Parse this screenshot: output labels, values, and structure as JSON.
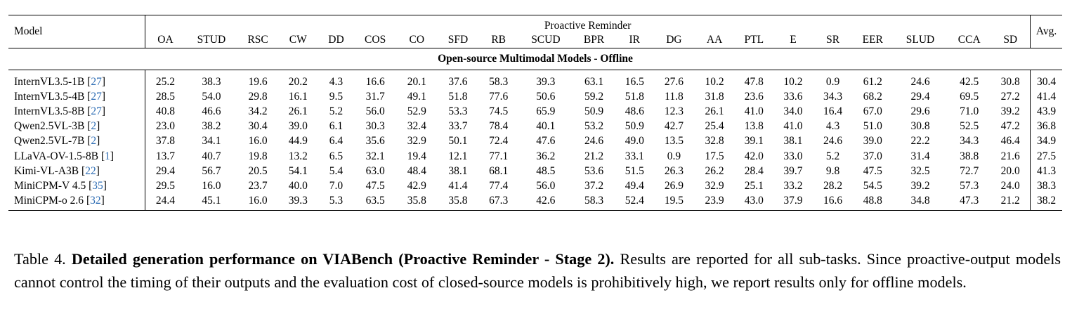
{
  "table": {
    "model_header": "Model",
    "group_header": "Proactive Reminder",
    "avg_header": "Avg.",
    "columns": [
      "OA",
      "STUD",
      "RSC",
      "CW",
      "DD",
      "COS",
      "CO",
      "SFD",
      "RB",
      "SCUD",
      "BPR",
      "IR",
      "DG",
      "AA",
      "PTL",
      "E",
      "SR",
      "EER",
      "SLUD",
      "CCA",
      "SD"
    ],
    "section_title": "Open-source Multimodal Models - Offline",
    "rows": [
      {
        "name": "InternVL3.5-1B",
        "ref": "27",
        "values": [
          "25.2",
          "38.3",
          "19.6",
          "20.2",
          "4.3",
          "16.6",
          "20.1",
          "37.6",
          "58.3",
          "39.3",
          "63.1",
          "16.5",
          "27.6",
          "10.2",
          "47.8",
          "10.2",
          "0.9",
          "61.2",
          "24.6",
          "42.5",
          "30.8"
        ],
        "avg": "30.4"
      },
      {
        "name": "InternVL3.5-4B",
        "ref": "27",
        "values": [
          "28.5",
          "54.0",
          "29.8",
          "16.1",
          "9.5",
          "31.7",
          "49.1",
          "51.8",
          "77.6",
          "50.6",
          "59.2",
          "51.8",
          "11.8",
          "31.8",
          "23.6",
          "33.6",
          "34.3",
          "68.2",
          "29.4",
          "69.5",
          "27.2"
        ],
        "avg": "41.4"
      },
      {
        "name": "InternVL3.5-8B",
        "ref": "27",
        "values": [
          "40.8",
          "46.6",
          "34.2",
          "26.1",
          "5.2",
          "56.0",
          "52.9",
          "53.3",
          "74.5",
          "65.9",
          "50.9",
          "48.6",
          "12.3",
          "26.1",
          "41.0",
          "34.0",
          "16.4",
          "67.0",
          "29.6",
          "71.0",
          "39.2"
        ],
        "avg": "43.9"
      },
      {
        "name": "Qwen2.5VL-3B",
        "ref": "2",
        "values": [
          "23.0",
          "38.2",
          "30.4",
          "39.0",
          "6.1",
          "30.3",
          "32.4",
          "33.7",
          "78.4",
          "40.1",
          "53.2",
          "50.9",
          "42.7",
          "25.4",
          "13.8",
          "41.0",
          "4.3",
          "51.0",
          "30.8",
          "52.5",
          "47.2"
        ],
        "avg": "36.8"
      },
      {
        "name": "Qwen2.5VL-7B",
        "ref": "2",
        "values": [
          "37.8",
          "34.1",
          "16.0",
          "44.9",
          "6.4",
          "35.6",
          "32.9",
          "50.1",
          "72.4",
          "47.6",
          "24.6",
          "49.0",
          "13.5",
          "32.8",
          "39.1",
          "38.1",
          "24.6",
          "39.0",
          "22.2",
          "34.3",
          "46.4"
        ],
        "avg": "34.9"
      },
      {
        "name": "LLaVA-OV-1.5-8B",
        "ref": "1",
        "values": [
          "13.7",
          "40.7",
          "19.8",
          "13.2",
          "6.5",
          "32.1",
          "19.4",
          "12.1",
          "77.1",
          "36.2",
          "21.2",
          "33.1",
          "0.9",
          "17.5",
          "42.0",
          "33.0",
          "5.2",
          "37.0",
          "31.4",
          "38.8",
          "21.6"
        ],
        "avg": "27.5"
      },
      {
        "name": "Kimi-VL-A3B",
        "ref": "22",
        "values": [
          "29.4",
          "56.7",
          "20.5",
          "54.1",
          "5.4",
          "63.0",
          "48.4",
          "38.1",
          "68.1",
          "48.5",
          "53.6",
          "51.5",
          "26.3",
          "26.2",
          "28.4",
          "39.7",
          "9.8",
          "47.5",
          "32.5",
          "72.7",
          "20.0"
        ],
        "avg": "41.3"
      },
      {
        "name": "MiniCPM-V 4.5",
        "ref": "35",
        "values": [
          "29.5",
          "16.0",
          "23.7",
          "40.0",
          "7.0",
          "47.5",
          "42.9",
          "41.4",
          "77.4",
          "56.0",
          "37.2",
          "49.4",
          "26.9",
          "32.9",
          "25.1",
          "33.2",
          "28.2",
          "54.5",
          "39.2",
          "57.3",
          "24.0"
        ],
        "avg": "38.3"
      },
      {
        "name": "MiniCPM-o 2.6",
        "ref": "32",
        "values": [
          "24.4",
          "45.1",
          "16.0",
          "39.3",
          "5.3",
          "63.5",
          "35.8",
          "35.8",
          "67.3",
          "42.6",
          "58.3",
          "52.4",
          "19.5",
          "23.9",
          "43.0",
          "37.9",
          "16.6",
          "48.8",
          "34.8",
          "47.3",
          "21.2"
        ],
        "avg": "38.2"
      }
    ]
  },
  "caption": {
    "label": "Table 4.",
    "title": "Detailed generation performance on VIABench (Proactive Reminder - Stage 2).",
    "body": "Results are reported for all sub-tasks. Since proactive-output models cannot control the timing of their outputs and the evaluation cost of closed-source models is prohibitively high, we report results only for offline models."
  }
}
